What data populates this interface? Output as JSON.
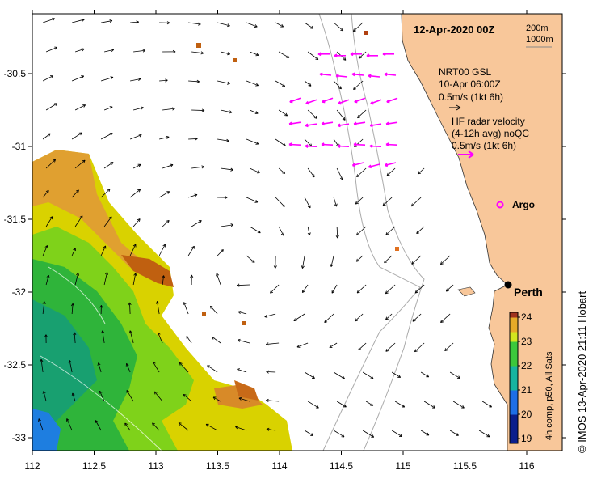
{
  "title": "12-Apr-2020 00Z",
  "depth_labels": [
    "200m",
    "1000m"
  ],
  "model": {
    "name": "NRT00 GSL",
    "time": "10-Apr 06:00Z",
    "scale": "0.5m/s (1kt 6h)"
  },
  "radar": {
    "line1": "HF radar velocity",
    "line2": "(4-12h avg) noQC",
    "scale": "0.5m/s (1kt 6h)"
  },
  "argo_label": "Argo",
  "city_label": "Perth",
  "credit": "© IMOS 13-Apr-2020 21:11 Hobart",
  "colorbar": {
    "label": "4h comp, p50, All Sats",
    "ticks": [
      "24",
      "23",
      "22",
      "21",
      "20",
      "19"
    ],
    "tick_values": [
      24,
      23,
      22,
      21,
      20,
      19
    ],
    "min": 18.8,
    "max": 24.2
  },
  "lon_ticks": [
    "112",
    "112.5",
    "113",
    "113.5",
    "114",
    "114.5",
    "115",
    "115.5",
    "116"
  ],
  "lon_values": [
    112,
    112.5,
    113,
    113.5,
    114,
    114.5,
    115,
    115.5,
    116
  ],
  "lat_ticks": [
    "-30.5",
    "-31",
    "-31.5",
    "-32",
    "-32.5",
    "-33"
  ],
  "lat_values": [
    -30.5,
    -31,
    -31.5,
    -32,
    -32.5,
    -33
  ],
  "colors": {
    "land": "#f8c79a",
    "radar_arrow": "#ff00ff",
    "model_arrow": "#000000",
    "bathymetry": "#aaaaaa"
  }
}
